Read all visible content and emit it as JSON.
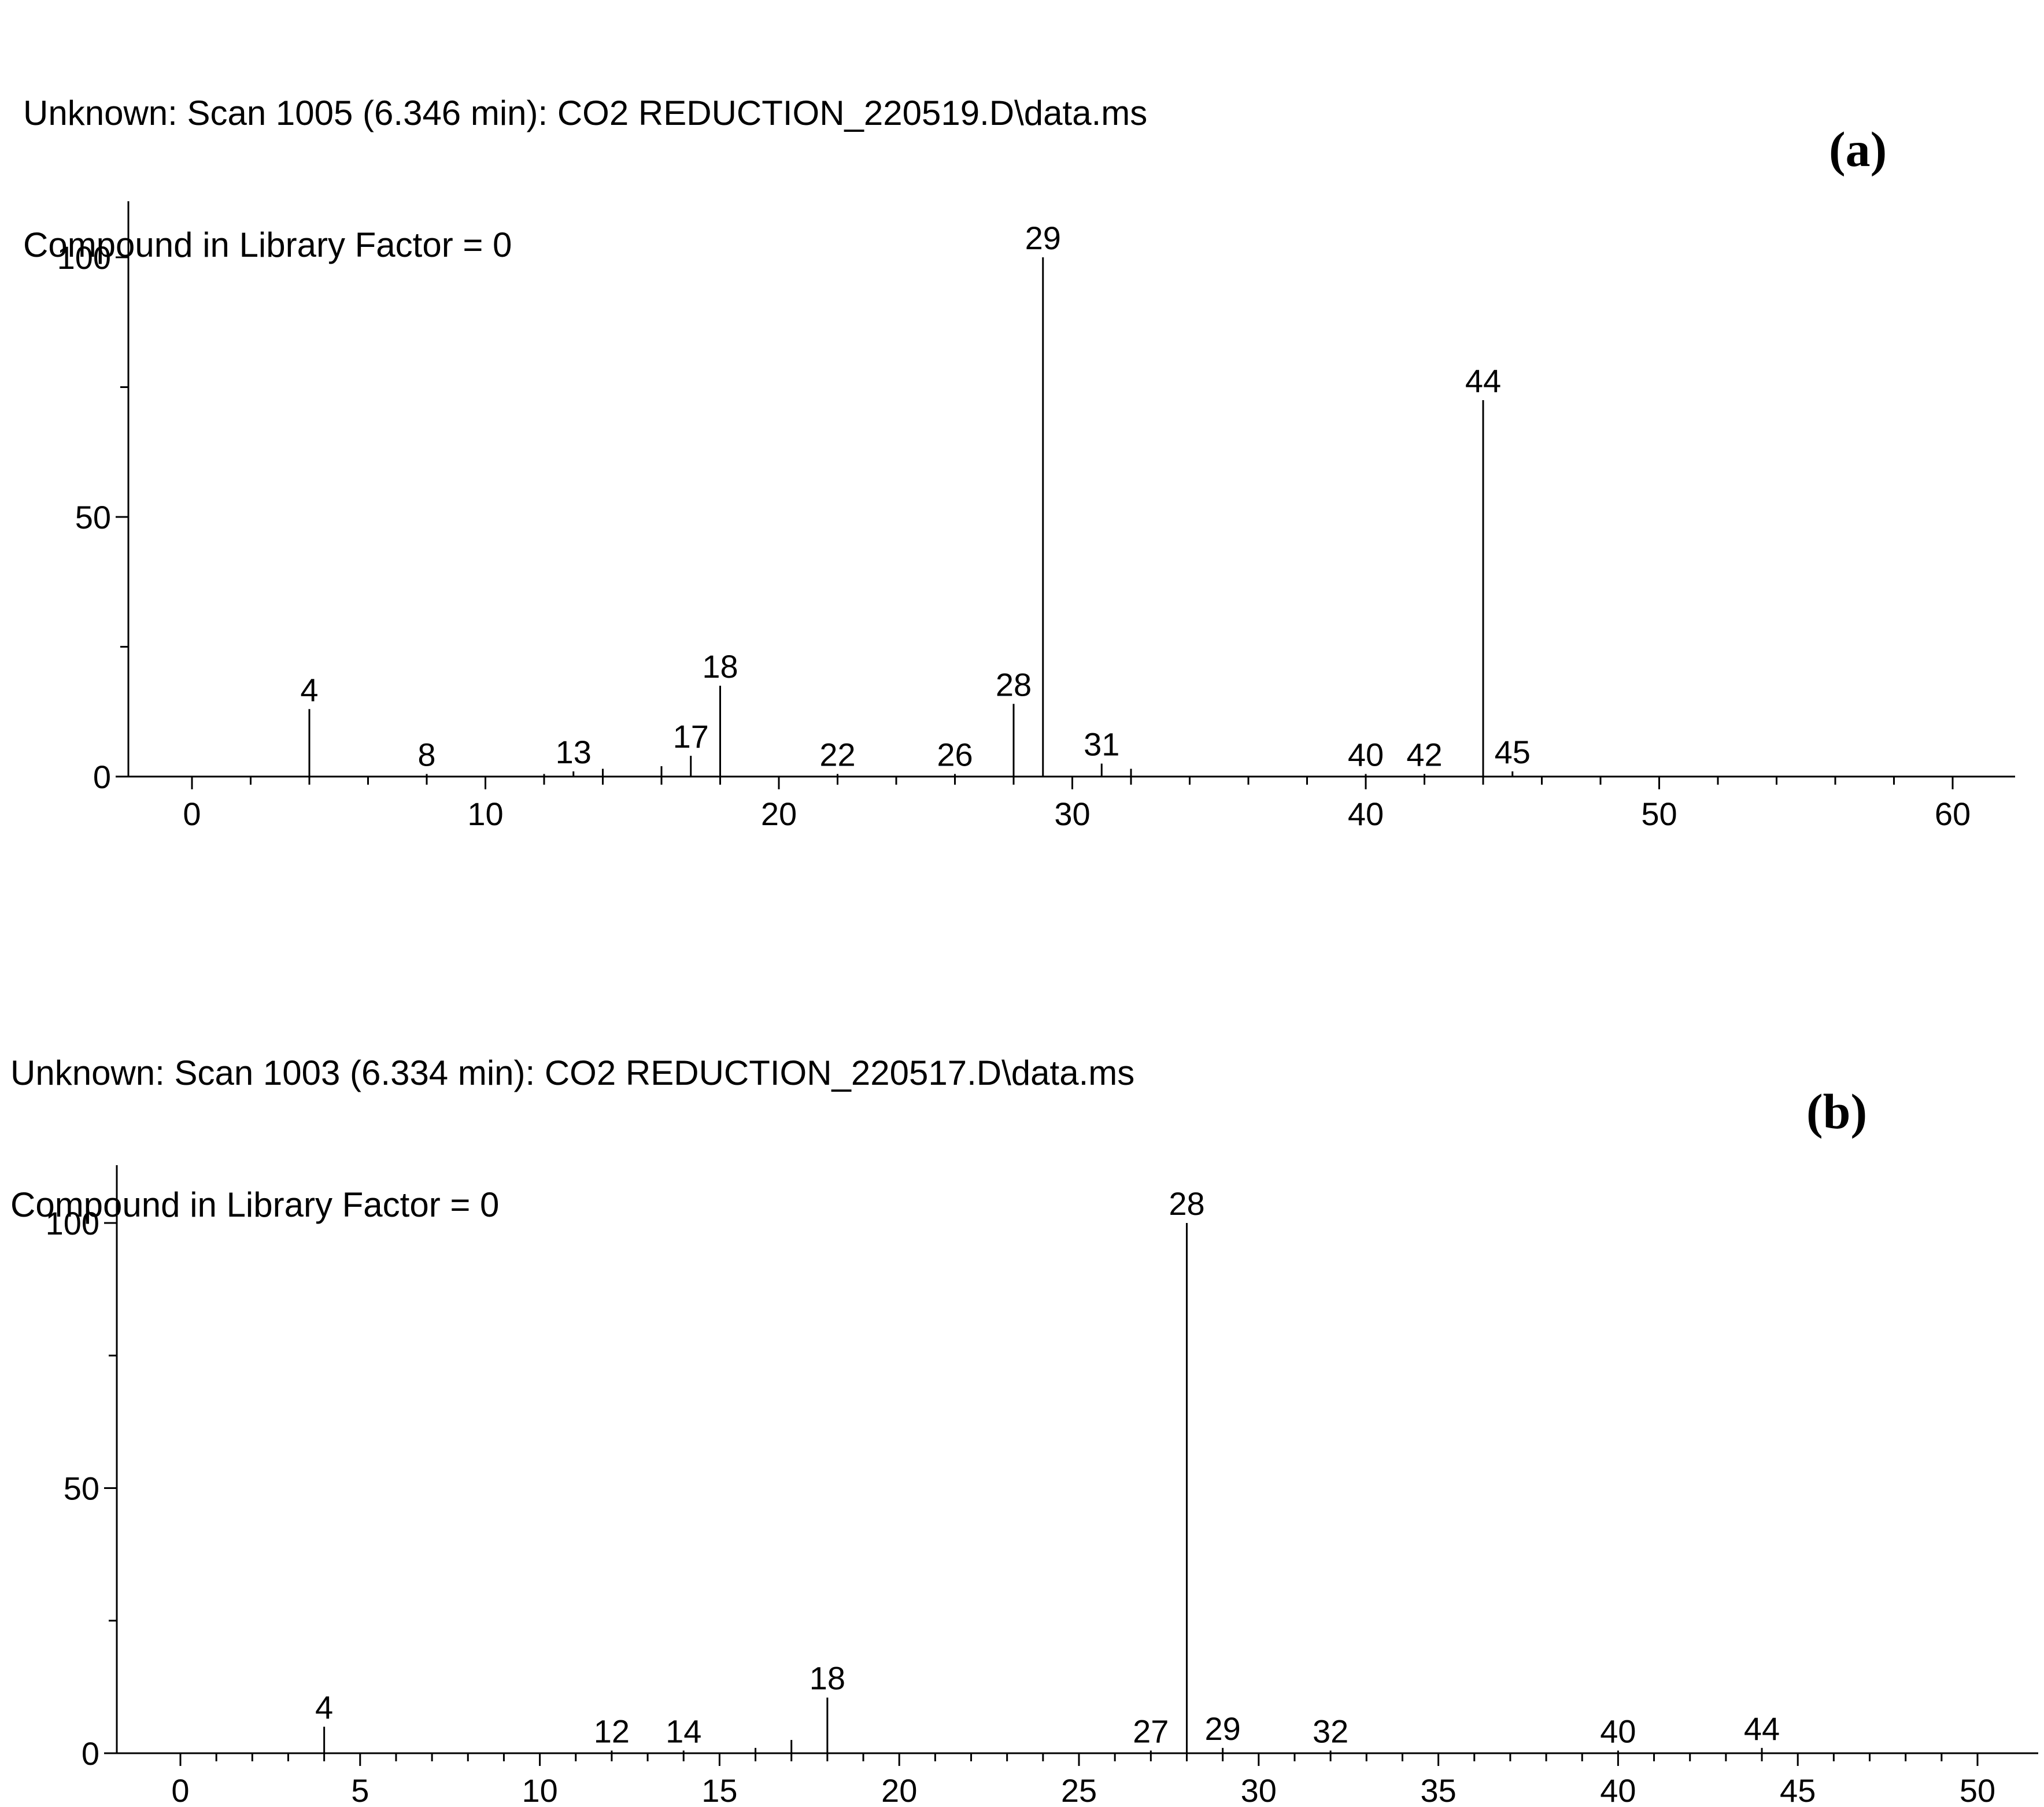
{
  "panels": [
    {
      "header_line1": "Unknown: Scan 1005 (6.346 min): CO2 REDUCTION_220519.D\\data.ms",
      "header_line2": "Compound in Library Factor = 0",
      "label_open": "(",
      "label_letter": "a",
      "label_close": ")"
    },
    {
      "header_line1": "Unknown: Scan 1003 (6.334 min): CO2 REDUCTION_220517.D\\data.ms",
      "header_line2": "Compound in Library Factor = 0",
      "label_open": "(",
      "label_letter": "b",
      "label_close": ")"
    }
  ],
  "chart_data": [
    {
      "type": "bar",
      "xlim": [
        -2,
        62
      ],
      "ylim": [
        0,
        110
      ],
      "x_ticks": [
        0,
        10,
        20,
        30,
        40,
        50,
        60
      ],
      "y_ticks": [
        0,
        50,
        100
      ],
      "peaks": [
        {
          "x": 4,
          "y": 13,
          "label": "4"
        },
        {
          "x": 8,
          "y": 0.5,
          "label": "8"
        },
        {
          "x": 12,
          "y": 0.5,
          "label": ""
        },
        {
          "x": 13,
          "y": 1,
          "label": "13"
        },
        {
          "x": 14,
          "y": 1.5,
          "label": ""
        },
        {
          "x": 16,
          "y": 2,
          "label": ""
        },
        {
          "x": 17,
          "y": 4,
          "label": "17"
        },
        {
          "x": 18,
          "y": 17.5,
          "label": "18"
        },
        {
          "x": 22,
          "y": 0.5,
          "label": "22"
        },
        {
          "x": 26,
          "y": 0.5,
          "label": "26"
        },
        {
          "x": 28,
          "y": 14,
          "label": "28"
        },
        {
          "x": 29,
          "y": 100,
          "label": "29"
        },
        {
          "x": 31,
          "y": 2.5,
          "label": "31"
        },
        {
          "x": 32,
          "y": 1.5,
          "label": ""
        },
        {
          "x": 40,
          "y": 0.5,
          "label": "40"
        },
        {
          "x": 42,
          "y": 0.5,
          "label": "42"
        },
        {
          "x": 44,
          "y": 72.5,
          "label": "44"
        },
        {
          "x": 45,
          "y": 1,
          "label": "45"
        }
      ]
    },
    {
      "type": "bar",
      "xlim": [
        -2,
        52
      ],
      "ylim": [
        0,
        110
      ],
      "x_ticks": [
        0,
        5,
        10,
        15,
        20,
        25,
        30,
        35,
        40,
        45,
        50
      ],
      "y_ticks": [
        0,
        50,
        100
      ],
      "peaks": [
        {
          "x": 4,
          "y": 5,
          "label": "4"
        },
        {
          "x": 12,
          "y": 0.5,
          "label": "12"
        },
        {
          "x": 14,
          "y": 0.5,
          "label": "14"
        },
        {
          "x": 16,
          "y": 1,
          "label": ""
        },
        {
          "x": 17,
          "y": 2.5,
          "label": ""
        },
        {
          "x": 18,
          "y": 10.5,
          "label": "18"
        },
        {
          "x": 27,
          "y": 0.5,
          "label": "27"
        },
        {
          "x": 28,
          "y": 100,
          "label": "28"
        },
        {
          "x": 29,
          "y": 1,
          "label": "29"
        },
        {
          "x": 32,
          "y": 0.5,
          "label": "32"
        },
        {
          "x": 40,
          "y": 0.5,
          "label": "40"
        },
        {
          "x": 44,
          "y": 1,
          "label": "44"
        }
      ]
    }
  ]
}
